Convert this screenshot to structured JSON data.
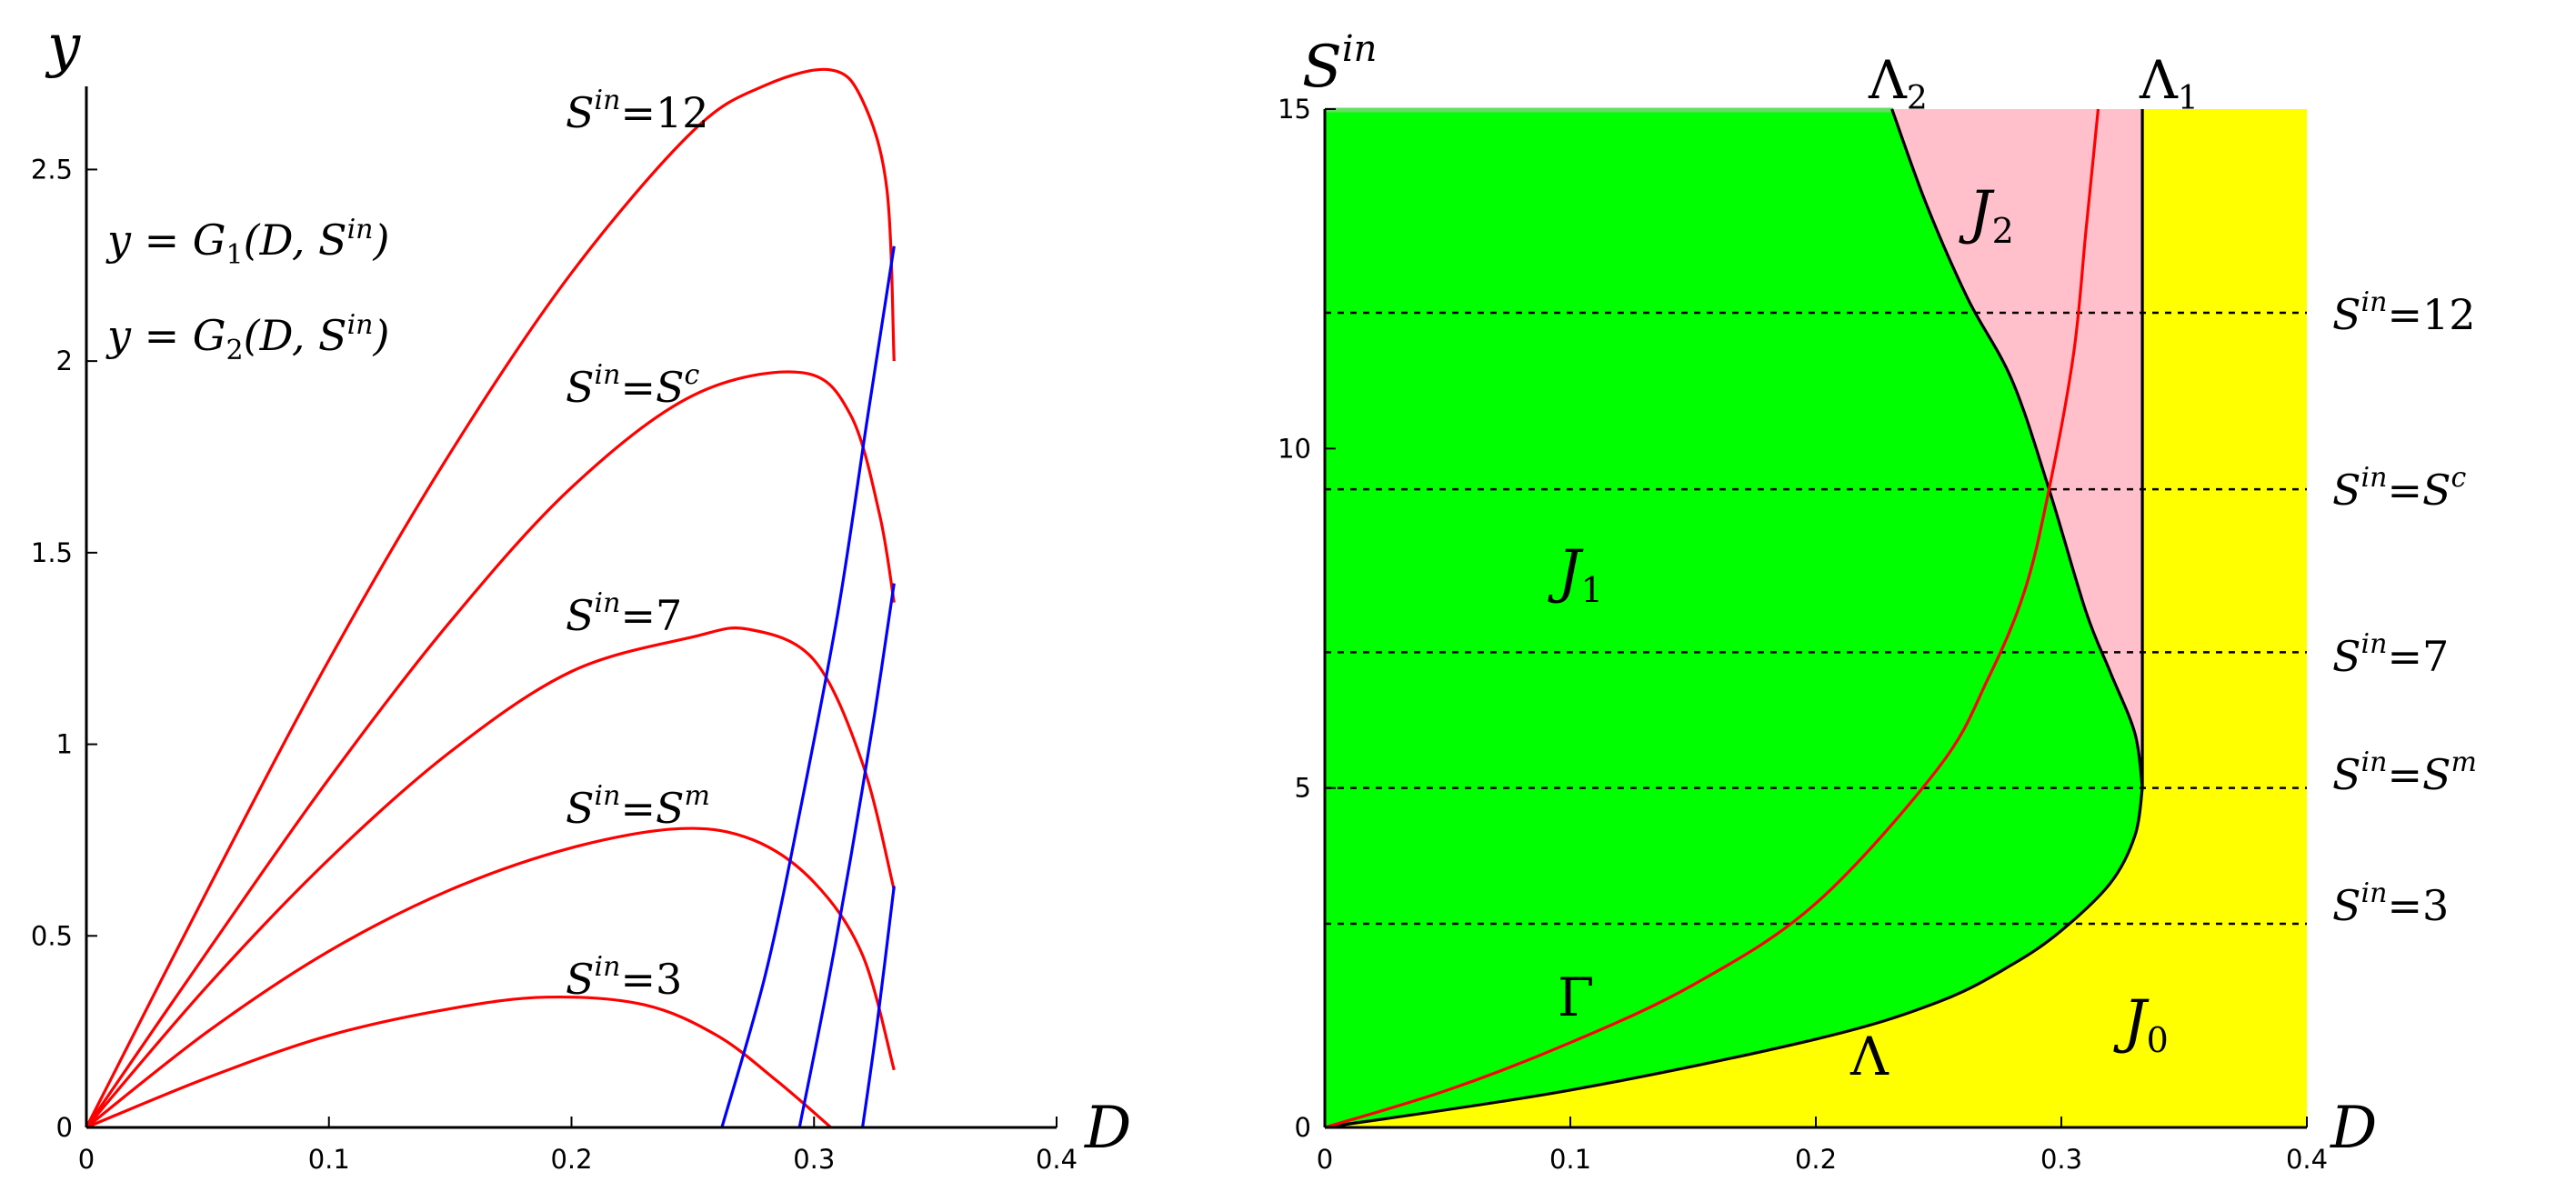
{
  "colors": {
    "red": "#ff0000",
    "blue": "#0000ff",
    "green": "#00ff00",
    "pink": "#ffc0cb",
    "yellow": "#ffff00",
    "black": "#000000"
  },
  "chart_data": [
    {
      "type": "line",
      "xlabel": "D",
      "ylabel": "y",
      "xlim": [
        0,
        0.4
      ],
      "ylim": [
        0,
        2.8
      ],
      "xticks": [
        "0",
        "0.1",
        "0.2",
        "0.3",
        "0.4"
      ],
      "yticks": [
        "0",
        "0.5",
        "1",
        "1.5",
        "2",
        "2.5"
      ],
      "grid": false,
      "legend": {
        "position": "top-left",
        "entries": [
          {
            "text": "y = G1(D, S^in)",
            "color": "#ff0000"
          },
          {
            "text": "y = G2(D, S^in)",
            "color": "#0000ff"
          }
        ]
      },
      "series": [
        {
          "name": "S^in = 12",
          "color": "#ff0000",
          "x": [
            0,
            0.05,
            0.1,
            0.15,
            0.2,
            0.25,
            0.28,
            0.307,
            0.32,
            0.33,
            0.333
          ],
          "y": [
            0,
            0.62,
            1.22,
            1.76,
            2.23,
            2.6,
            2.72,
            2.76,
            2.68,
            2.45,
            2.0
          ]
        },
        {
          "name": "S^in = S^c",
          "color": "#ff0000",
          "x": [
            0,
            0.05,
            0.1,
            0.15,
            0.2,
            0.25,
            0.295,
            0.315,
            0.327,
            0.333
          ],
          "y": [
            0,
            0.46,
            0.91,
            1.32,
            1.67,
            1.91,
            1.97,
            1.86,
            1.6,
            1.37
          ]
        },
        {
          "name": "S^in = 7",
          "color": "#ff0000",
          "x": [
            0,
            0.05,
            0.1,
            0.15,
            0.2,
            0.25,
            0.273,
            0.3,
            0.32,
            0.333
          ],
          "y": [
            0,
            0.37,
            0.7,
            0.98,
            1.19,
            1.28,
            1.3,
            1.22,
            0.95,
            0.62
          ]
        },
        {
          "name": "S^in = S^m",
          "color": "#ff0000",
          "x": [
            0,
            0.05,
            0.1,
            0.15,
            0.2,
            0.245,
            0.275,
            0.3,
            0.32,
            0.333
          ],
          "y": [
            0,
            0.25,
            0.46,
            0.62,
            0.73,
            0.78,
            0.75,
            0.64,
            0.45,
            0.15
          ]
        },
        {
          "name": "S^in = 3",
          "color": "#ff0000",
          "x": [
            0,
            0.05,
            0.1,
            0.15,
            0.19,
            0.23,
            0.26,
            0.285,
            0.307
          ],
          "y": [
            0,
            0.13,
            0.24,
            0.31,
            0.34,
            0.32,
            0.24,
            0.12,
            0
          ]
        },
        {
          "name": "G2, S^in = 12",
          "color": "#0000ff",
          "x": [
            0.262,
            0.28,
            0.295,
            0.31,
            0.322,
            0.333
          ],
          "y": [
            0,
            0.4,
            0.85,
            1.35,
            1.85,
            2.3
          ]
        },
        {
          "name": "G2, S^in = 7",
          "color": "#0000ff",
          "x": [
            0.294,
            0.305,
            0.315,
            0.325,
            0.333
          ],
          "y": [
            0,
            0.35,
            0.7,
            1.08,
            1.42
          ]
        },
        {
          "name": "G2, S^in = 3",
          "color": "#0000ff",
          "x": [
            0.32,
            0.326,
            0.333
          ],
          "y": [
            0,
            0.27,
            0.63
          ]
        }
      ],
      "annotations": [
        "S^in = 12",
        "S^in = S^c",
        "S^in = 7",
        "S^in = S^m",
        "S^in = 3"
      ]
    },
    {
      "type": "area",
      "xlabel": "D",
      "ylabel": "S^in",
      "xlim": [
        0,
        0.4
      ],
      "ylim": [
        0,
        15
      ],
      "xticks": [
        "0",
        "0.1",
        "0.2",
        "0.3",
        "0.4"
      ],
      "yticks": [
        "0",
        "5",
        "10",
        "15"
      ],
      "grid": false,
      "regions": [
        {
          "label": "J1",
          "color": "#00ff00"
        },
        {
          "label": "J2",
          "color": "#ffc0cb"
        },
        {
          "label": "J0",
          "color": "#ffff00"
        }
      ],
      "curves": [
        {
          "name": "Lambda",
          "color": "#000000",
          "x": [
            0,
            0.1,
            0.2,
            0.25,
            0.28,
            0.3,
            0.32,
            0.33,
            0.333
          ],
          "y": [
            0,
            0.55,
            1.3,
            1.85,
            2.4,
            2.9,
            3.6,
            4.3,
            5.0
          ]
        },
        {
          "name": "Lambda2",
          "color": "#000000",
          "x": [
            0.333,
            0.33,
            0.32,
            0.31,
            0.295,
            0.28,
            0.262,
            0.245,
            0.231
          ],
          "y": [
            5.0,
            5.8,
            6.7,
            7.6,
            9.4,
            11.0,
            12.2,
            13.6,
            15.0
          ]
        },
        {
          "name": "Lambda1",
          "color": "#000000",
          "x": [
            0.333,
            0.333
          ],
          "y": [
            5.0,
            15.0
          ]
        },
        {
          "name": "Gamma",
          "color": "#ff0000",
          "x": [
            0,
            0.05,
            0.1,
            0.15,
            0.2,
            0.25,
            0.27,
            0.285,
            0.295,
            0.305,
            0.31,
            0.315
          ],
          "y": [
            0,
            0.55,
            1.25,
            2.1,
            3.3,
            5.3,
            6.6,
            7.9,
            9.4,
            11.4,
            13.2,
            15.0
          ]
        }
      ],
      "hlines": [
        {
          "label": "S^in = 12",
          "y": 12
        },
        {
          "label": "S^in = S^c",
          "y": 9.4
        },
        {
          "label": "S^in = 7",
          "y": 7
        },
        {
          "label": "S^in = S^m",
          "y": 5
        },
        {
          "label": "S^in = 3",
          "y": 3
        }
      ],
      "curve_labels": [
        "Λ",
        "Λ1",
        "Λ2",
        "Γ"
      ],
      "region_labels": [
        "J0",
        "J1",
        "J2"
      ]
    }
  ]
}
